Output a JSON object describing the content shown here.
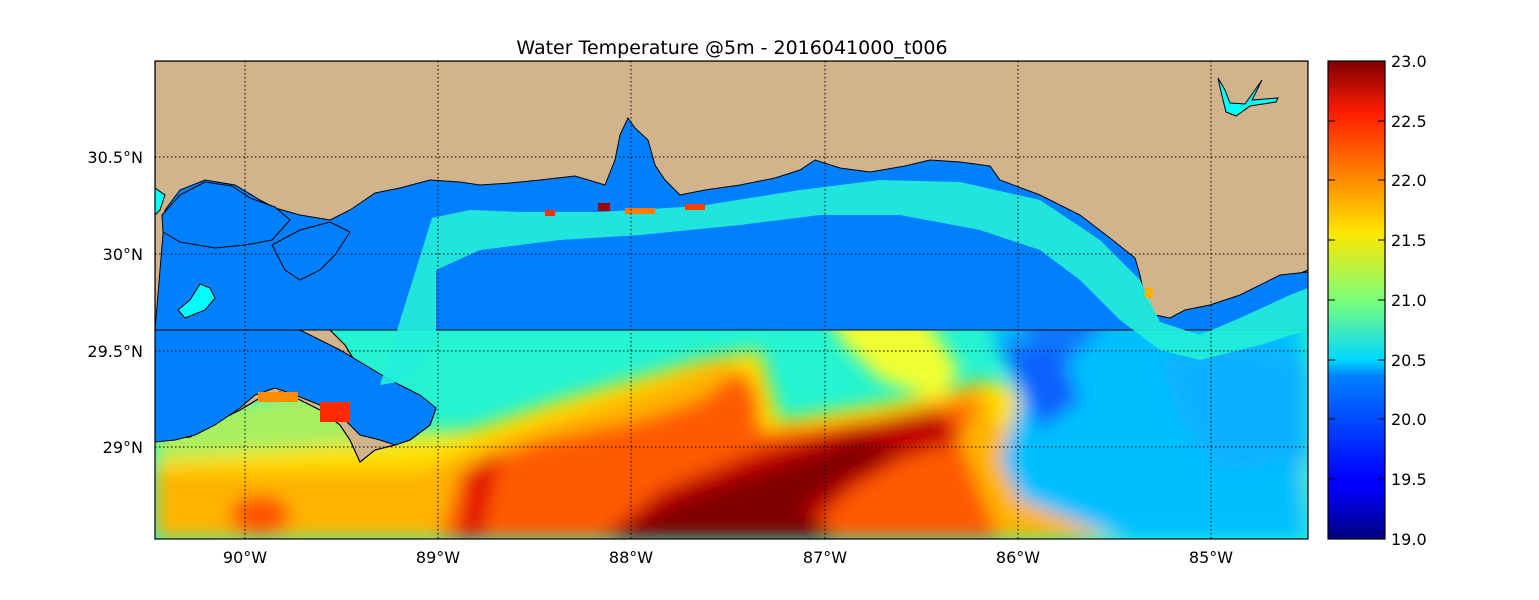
{
  "title": "Water Temperature @5m - 2016041000_t006",
  "map": {
    "lon_range": [
      -90.5,
      -84.5
    ],
    "lat_range": [
      28.55,
      31.0
    ],
    "lon_ticks": [
      {
        "value": -90,
        "label": "90°W"
      },
      {
        "value": -89,
        "label": "89°W"
      },
      {
        "value": -88,
        "label": "88°W"
      },
      {
        "value": -87,
        "label": "87°W"
      },
      {
        "value": -86,
        "label": "86°W"
      },
      {
        "value": -85,
        "label": "85°W"
      }
    ],
    "lat_ticks": [
      {
        "value": 30.5,
        "label": "30.5°N"
      },
      {
        "value": 30.0,
        "label": "30°N"
      },
      {
        "value": 29.5,
        "label": "29.5°N"
      },
      {
        "value": 29.0,
        "label": "29°N"
      }
    ],
    "gridlines": "dotted",
    "land_color": "#d2b48c",
    "water_color": "#0080ff",
    "lake_color": "#00ffff"
  },
  "colorbar": {
    "range": [
      19.0,
      23.0
    ],
    "colormap": "jet",
    "ticks": [
      "23.0",
      "22.5",
      "22.0",
      "21.5",
      "21.0",
      "20.5",
      "20.0",
      "19.5",
      "19.0"
    ],
    "placement": "right"
  }
}
